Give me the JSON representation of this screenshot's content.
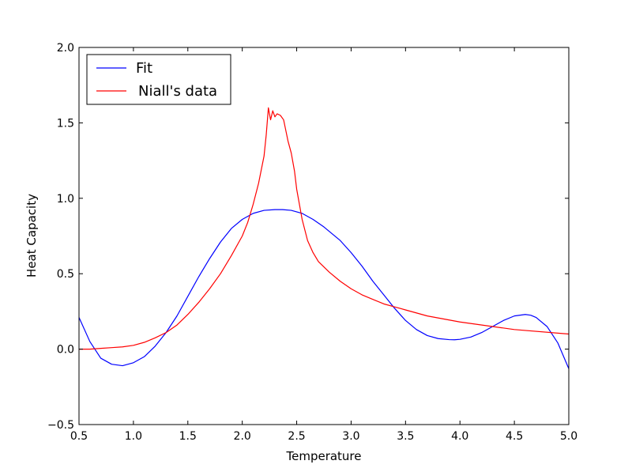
{
  "chart_data": {
    "type": "line",
    "xlabel": "Temperature",
    "ylabel": "Heat Capacity",
    "xlim": [
      0.5,
      5.0
    ],
    "ylim": [
      -0.5,
      2.0
    ],
    "x_ticks": [
      "0.5",
      "1.0",
      "1.5",
      "2.0",
      "2.5",
      "3.0",
      "3.5",
      "4.0",
      "4.5",
      "5.0"
    ],
    "y_ticks": [
      "−0.5",
      "0.0",
      "0.5",
      "1.0",
      "1.5",
      "2.0"
    ],
    "grid": false,
    "legend_position": "top-left",
    "series": [
      {
        "name": "Fit",
        "color": "#0000ff",
        "x": [
          0.5,
          0.6,
          0.7,
          0.8,
          0.9,
          1.0,
          1.1,
          1.2,
          1.3,
          1.4,
          1.5,
          1.6,
          1.7,
          1.8,
          1.9,
          2.0,
          2.1,
          2.2,
          2.3,
          2.37,
          2.45,
          2.55,
          2.65,
          2.75,
          2.9,
          3.0,
          3.1,
          3.2,
          3.3,
          3.4,
          3.5,
          3.6,
          3.7,
          3.8,
          3.9,
          3.95,
          4.0,
          4.1,
          4.2,
          4.3,
          4.4,
          4.5,
          4.6,
          4.65,
          4.7,
          4.8,
          4.9,
          5.0
        ],
        "y": [
          0.21,
          0.05,
          -0.06,
          -0.1,
          -0.11,
          -0.09,
          -0.05,
          0.02,
          0.11,
          0.22,
          0.35,
          0.48,
          0.6,
          0.71,
          0.8,
          0.86,
          0.9,
          0.92,
          0.925,
          0.925,
          0.92,
          0.9,
          0.86,
          0.81,
          0.72,
          0.64,
          0.55,
          0.45,
          0.36,
          0.27,
          0.19,
          0.13,
          0.09,
          0.07,
          0.063,
          0.062,
          0.065,
          0.08,
          0.11,
          0.15,
          0.19,
          0.22,
          0.23,
          0.225,
          0.21,
          0.15,
          0.04,
          -0.13
        ]
      },
      {
        "name": "Niall's data",
        "color": "#ff0000",
        "x": [
          0.5,
          0.6,
          0.7,
          0.8,
          0.9,
          1.0,
          1.1,
          1.2,
          1.3,
          1.4,
          1.5,
          1.6,
          1.7,
          1.8,
          1.9,
          2.0,
          2.05,
          2.1,
          2.15,
          2.2,
          2.22,
          2.24,
          2.26,
          2.28,
          2.3,
          2.32,
          2.35,
          2.38,
          2.4,
          2.42,
          2.45,
          2.48,
          2.5,
          2.55,
          2.6,
          2.65,
          2.7,
          2.8,
          2.9,
          3.0,
          3.1,
          3.2,
          3.3,
          3.4,
          3.5,
          3.7,
          4.0,
          4.5,
          5.0
        ],
        "y": [
          0.0,
          0.0,
          0.005,
          0.01,
          0.015,
          0.025,
          0.045,
          0.075,
          0.11,
          0.16,
          0.23,
          0.31,
          0.4,
          0.5,
          0.62,
          0.75,
          0.84,
          0.96,
          1.1,
          1.28,
          1.42,
          1.6,
          1.52,
          1.58,
          1.54,
          1.56,
          1.55,
          1.52,
          1.45,
          1.38,
          1.3,
          1.18,
          1.06,
          0.86,
          0.72,
          0.64,
          0.58,
          0.51,
          0.45,
          0.4,
          0.36,
          0.33,
          0.3,
          0.28,
          0.26,
          0.22,
          0.18,
          0.13,
          0.1
        ]
      }
    ]
  }
}
